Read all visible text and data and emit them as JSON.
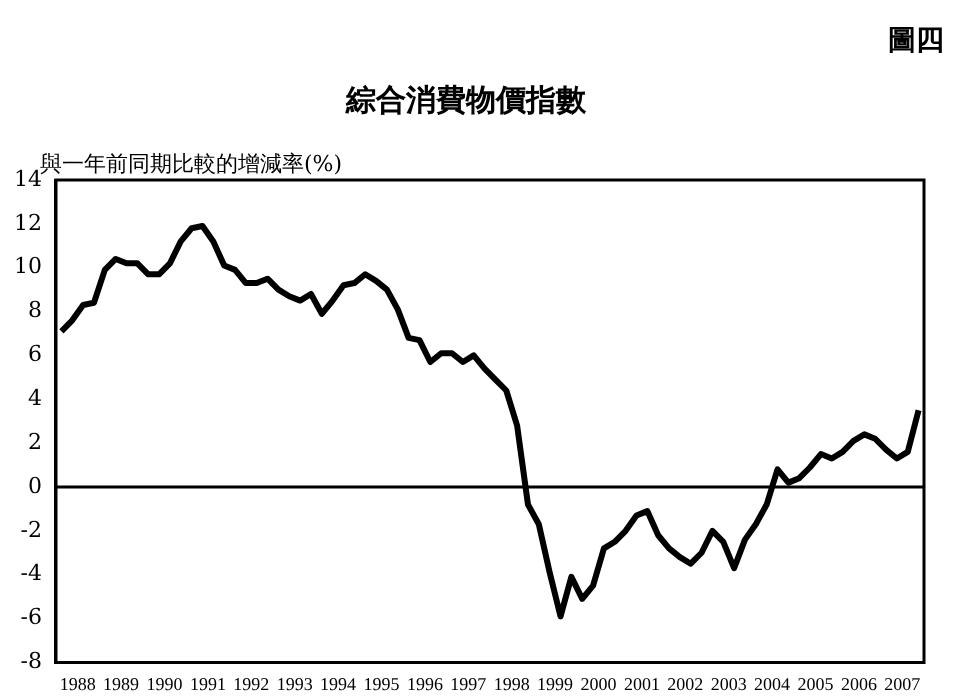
{
  "chart_data": {
    "type": "line",
    "title": "綜合消費物價指數",
    "ylabel": "與一年前同期比較的增減率(%)",
    "annotations": [
      "圖四"
    ],
    "x": [
      1988.125,
      1988.375,
      1988.625,
      1988.875,
      1989.125,
      1989.375,
      1989.625,
      1989.875,
      1990.125,
      1990.375,
      1990.625,
      1990.875,
      1991.125,
      1991.375,
      1991.625,
      1991.875,
      1992.125,
      1992.375,
      1992.625,
      1992.875,
      1993.125,
      1993.375,
      1993.625,
      1993.875,
      1994.125,
      1994.375,
      1994.625,
      1994.875,
      1995.125,
      1995.375,
      1995.625,
      1995.875,
      1996.125,
      1996.375,
      1996.625,
      1996.875,
      1997.125,
      1997.375,
      1997.625,
      1997.875,
      1998.125,
      1998.375,
      1998.625,
      1998.875,
      1999.125,
      1999.375,
      1999.625,
      1999.875,
      2000.125,
      2000.375,
      2000.625,
      2000.875,
      2001.125,
      2001.375,
      2001.625,
      2001.875,
      2002.125,
      2002.375,
      2002.625,
      2002.875,
      2003.125,
      2003.375,
      2003.625,
      2003.875,
      2004.125,
      2004.375,
      2004.625,
      2004.875,
      2005.125,
      2005.375,
      2005.625,
      2005.875,
      2006.125,
      2006.375,
      2006.625,
      2006.875,
      2007.125,
      2007.375,
      2007.625,
      2007.875
    ],
    "series": [
      {
        "color": "#000000",
        "values": [
          7.1,
          7.6,
          8.3,
          8.4,
          9.9,
          10.4,
          10.2,
          10.2,
          9.7,
          9.7,
          10.2,
          11.2,
          11.8,
          11.9,
          11.2,
          10.1,
          9.9,
          9.3,
          9.3,
          9.5,
          9.0,
          8.7,
          8.5,
          8.8,
          7.9,
          8.5,
          9.2,
          9.3,
          9.7,
          9.4,
          9.0,
          8.1,
          6.8,
          6.7,
          5.7,
          6.1,
          6.1,
          5.7,
          6.0,
          5.4,
          4.9,
          4.4,
          2.8,
          -0.8,
          -1.7,
          -3.9,
          -5.9,
          -4.1,
          -5.1,
          -4.5,
          -2.8,
          -2.5,
          -2.0,
          -1.3,
          -1.1,
          -2.2,
          -2.8,
          -3.2,
          -3.5,
          -3.0,
          -2.0,
          -2.5,
          -3.7,
          -2.4,
          -1.7,
          -0.8,
          0.8,
          0.2,
          0.4,
          0.9,
          1.5,
          1.3,
          1.6,
          2.1,
          2.4,
          2.2,
          1.7,
          1.3,
          1.6,
          3.5
        ]
      }
    ],
    "xlim": [
      1988,
      2008
    ],
    "xticks": [
      {
        "value": 1988.5,
        "label": "1988"
      },
      {
        "value": 1989.5,
        "label": "1989"
      },
      {
        "value": 1990.5,
        "label": "1990"
      },
      {
        "value": 1991.5,
        "label": "1991"
      },
      {
        "value": 1992.5,
        "label": "1992"
      },
      {
        "value": 1993.5,
        "label": "1993"
      },
      {
        "value": 1994.5,
        "label": "1994"
      },
      {
        "value": 1995.5,
        "label": "1995"
      },
      {
        "value": 1996.5,
        "label": "1996"
      },
      {
        "value": 1997.5,
        "label": "1997"
      },
      {
        "value": 1998.5,
        "label": "1998"
      },
      {
        "value": 1999.5,
        "label": "1999"
      },
      {
        "value": 2000.5,
        "label": "2000"
      },
      {
        "value": 2001.5,
        "label": "2001"
      },
      {
        "value": 2002.5,
        "label": "2002"
      },
      {
        "value": 2003.5,
        "label": "2003"
      },
      {
        "value": 2004.5,
        "label": "2004"
      },
      {
        "value": 2005.5,
        "label": "2005"
      },
      {
        "value": 2006.5,
        "label": "2006"
      },
      {
        "value": 2007.5,
        "label": "2007"
      }
    ],
    "ylim": [
      -8,
      14
    ],
    "yticks": [
      -8,
      -6,
      -4,
      -2,
      0,
      2,
      4,
      6,
      8,
      10,
      12,
      14
    ],
    "ref_lines": [
      {
        "axis": "y",
        "value": 0,
        "color": "#000000"
      }
    ],
    "grid": false,
    "legend": false,
    "marker": "none",
    "line_style": "solid"
  }
}
